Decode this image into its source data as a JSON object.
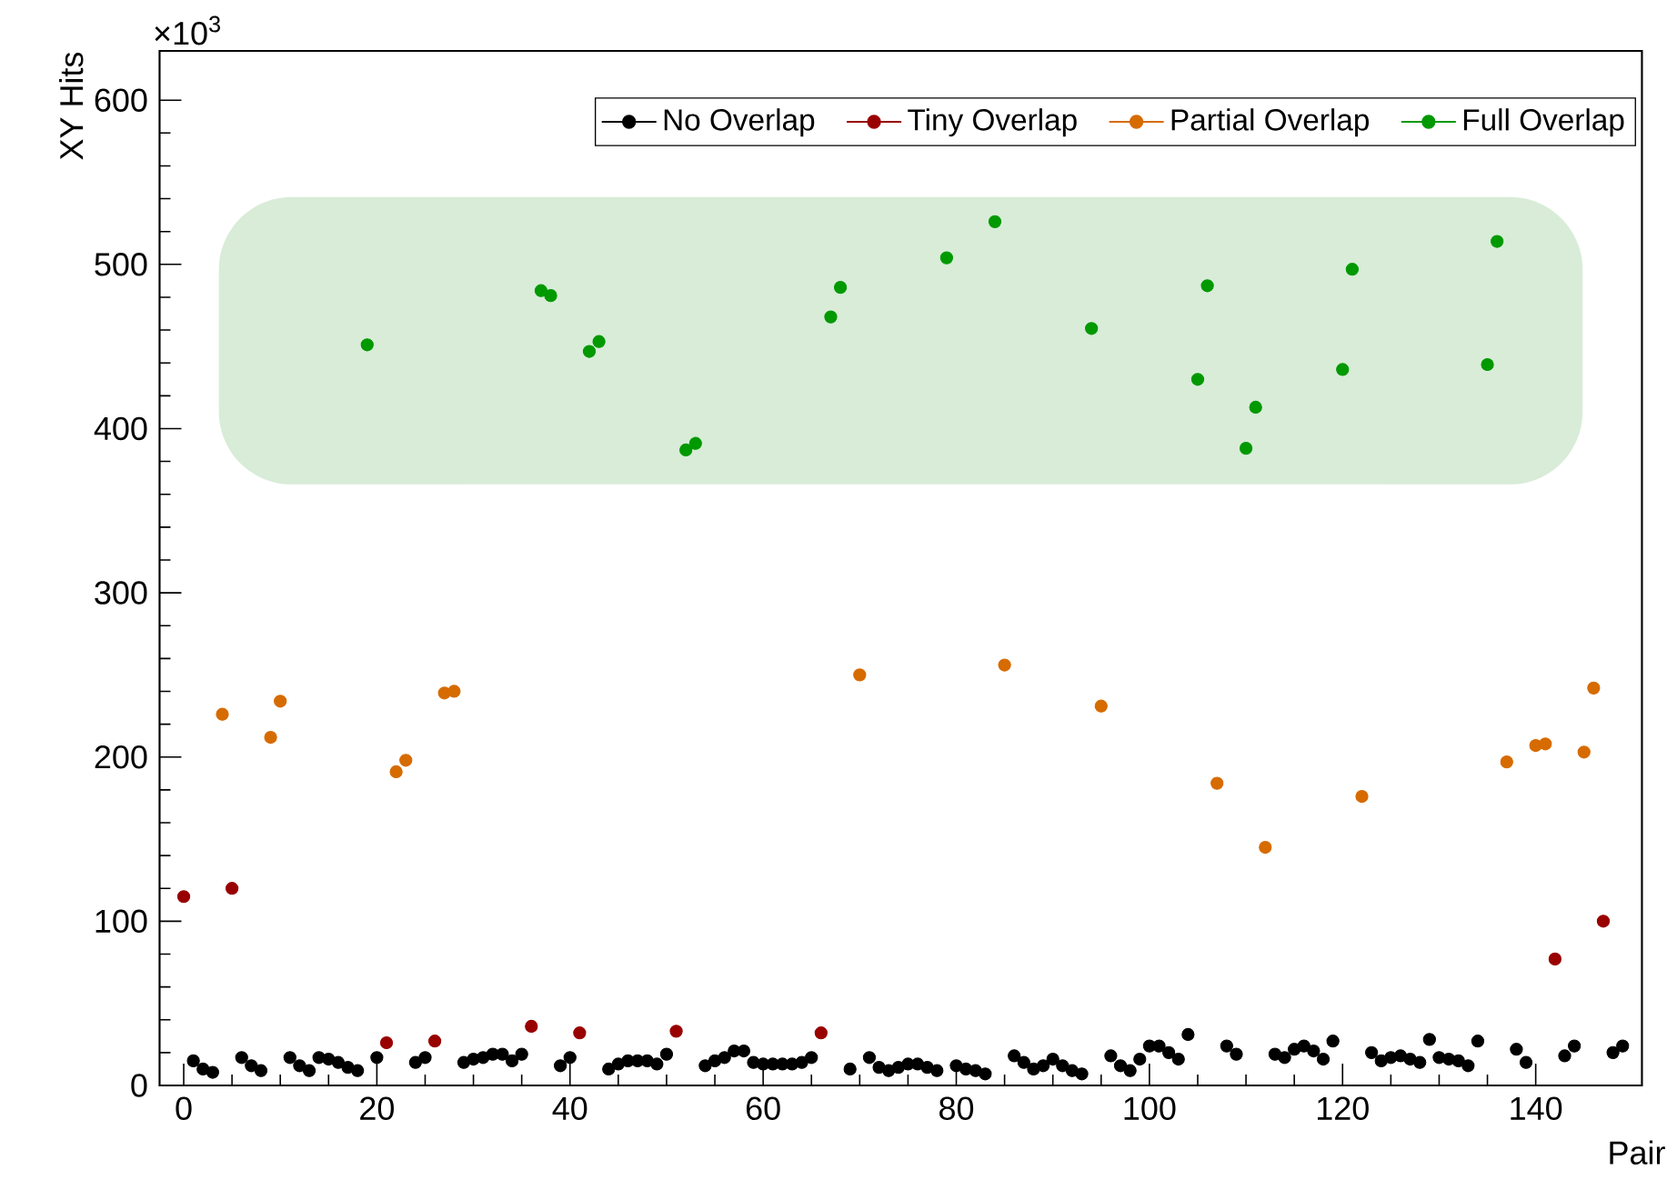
{
  "chart_data": {
    "type": "scatter",
    "xlabel": "Pair",
    "ylabel": "XY Hits",
    "annotations": [
      "×10$^{3}$"
    ],
    "xlim": [
      -2.5,
      151
    ],
    "ylim": [
      0,
      630
    ],
    "xticks": [
      0,
      20,
      40,
      60,
      80,
      100,
      120,
      140
    ],
    "yticks": [
      0,
      100,
      200,
      300,
      400,
      500,
      600
    ],
    "grid": false,
    "legend": "top right",
    "marker": "circle",
    "bands": [
      {
        "axis": "y",
        "from": 366,
        "to": 541,
        "color": "#d8ecd8"
      }
    ],
    "series": [
      {
        "name": "No Overlap",
        "color": "#000000",
        "x": [
          1,
          2,
          3,
          6,
          7,
          8,
          11,
          12,
          13,
          14,
          15,
          16,
          17,
          18,
          20,
          24,
          25,
          29,
          30,
          31,
          32,
          33,
          34,
          35,
          39,
          40,
          44,
          45,
          46,
          47,
          48,
          49,
          50,
          54,
          55,
          56,
          57,
          58,
          59,
          60,
          61,
          62,
          63,
          64,
          65,
          69,
          71,
          72,
          73,
          74,
          75,
          76,
          77,
          78,
          80,
          81,
          82,
          83,
          86,
          87,
          88,
          89,
          90,
          91,
          92,
          93,
          96,
          97,
          98,
          99,
          100,
          101,
          102,
          103,
          104,
          108,
          109,
          113,
          114,
          115,
          116,
          117,
          118,
          119,
          123,
          124,
          125,
          126,
          127,
          128,
          129,
          130,
          131,
          132,
          133,
          134,
          138,
          139,
          143,
          144,
          148,
          149
        ],
        "values": [
          15,
          10,
          8,
          17,
          12,
          9,
          17,
          12,
          9,
          17,
          16,
          14,
          11,
          9,
          17,
          14,
          17,
          14,
          16,
          17,
          19,
          19,
          15,
          19,
          12,
          17,
          10,
          13,
          15,
          15,
          15,
          13,
          19,
          12,
          15,
          17,
          21,
          21,
          14,
          13,
          13,
          13,
          13,
          14,
          17,
          10,
          17,
          11,
          9,
          11,
          13,
          13,
          11,
          9,
          12,
          10,
          9,
          7,
          18,
          14,
          10,
          12,
          16,
          12,
          9,
          7,
          18,
          12,
          9,
          16,
          24,
          24,
          20,
          16,
          31,
          24,
          19,
          19,
          17,
          22,
          24,
          21,
          16,
          27,
          20,
          15,
          17,
          18,
          16,
          14,
          28,
          17,
          16,
          15,
          12,
          27,
          22,
          14,
          18,
          24,
          20,
          24
        ]
      },
      {
        "name": "Tiny Overlap",
        "color": "#990000",
        "x": [
          0,
          5,
          21,
          26,
          36,
          41,
          51,
          66,
          142,
          147
        ],
        "values": [
          115,
          120,
          26,
          27,
          36,
          32,
          33,
          32,
          77,
          100
        ]
      },
      {
        "name": "Partial Overlap",
        "color": "#d66b00",
        "x": [
          4,
          9,
          10,
          22,
          23,
          27,
          28,
          70,
          85,
          95,
          107,
          112,
          122,
          137,
          140,
          141,
          145,
          146
        ],
        "values": [
          226,
          212,
          234,
          191,
          198,
          239,
          240,
          250,
          256,
          231,
          184,
          145,
          176,
          197,
          207,
          208,
          203,
          242
        ]
      },
      {
        "name": "Full Overlap",
        "color": "#009900",
        "x": [
          19,
          37,
          38,
          42,
          43,
          52,
          53,
          67,
          68,
          79,
          84,
          94,
          105,
          106,
          110,
          111,
          120,
          121,
          135,
          136
        ],
        "values": [
          451,
          484,
          481,
          447,
          453,
          387,
          391,
          468,
          486,
          504,
          526,
          461,
          430,
          487,
          388,
          413,
          436,
          497,
          439,
          514
        ]
      }
    ]
  }
}
